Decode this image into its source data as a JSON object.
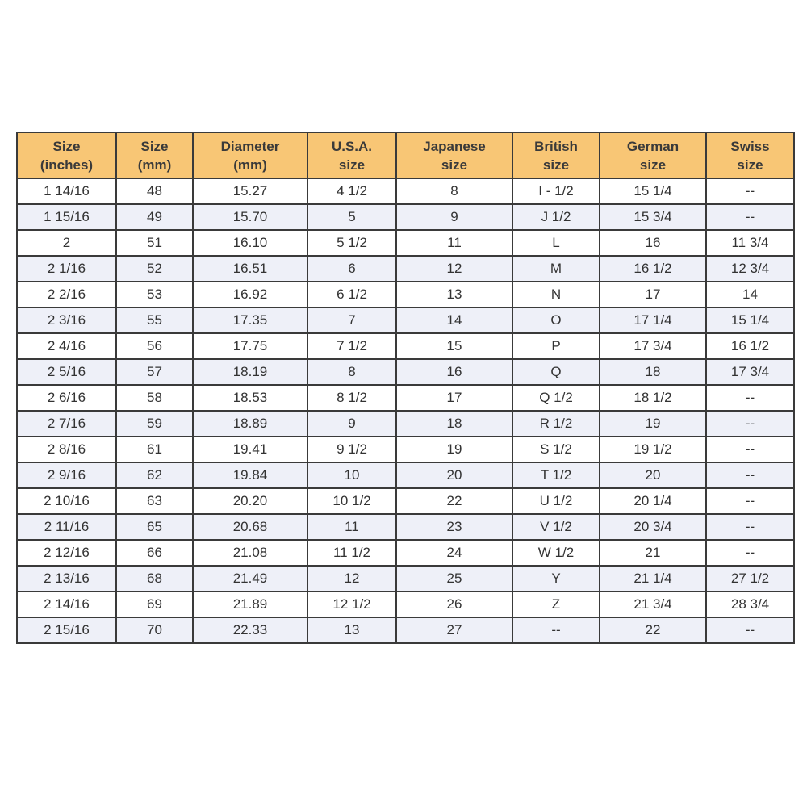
{
  "table": {
    "headers": [
      [
        "Size",
        "(inches)"
      ],
      [
        "Size",
        "(mm)"
      ],
      [
        "Diameter",
        "(mm)"
      ],
      [
        "U.S.A.",
        "size"
      ],
      [
        "Japanese",
        "size"
      ],
      [
        "British",
        "size"
      ],
      [
        "German",
        "size"
      ],
      [
        "Swiss",
        "size"
      ]
    ],
    "rows": [
      [
        "1 14/16",
        "48",
        "15.27",
        "4 1/2",
        "8",
        "I - 1/2",
        "15 1/4",
        "--"
      ],
      [
        "1 15/16",
        "49",
        "15.70",
        "5",
        "9",
        "J 1/2",
        "15 3/4",
        "--"
      ],
      [
        "2",
        "51",
        "16.10",
        "5 1/2",
        "11",
        "L",
        "16",
        "11 3/4"
      ],
      [
        "2 1/16",
        "52",
        "16.51",
        "6",
        "12",
        "M",
        "16 1/2",
        "12 3/4"
      ],
      [
        "2 2/16",
        "53",
        "16.92",
        "6 1/2",
        "13",
        "N",
        "17",
        "14"
      ],
      [
        "2 3/16",
        "55",
        "17.35",
        "7",
        "14",
        "O",
        "17 1/4",
        "15 1/4"
      ],
      [
        "2 4/16",
        "56",
        "17.75",
        "7 1/2",
        "15",
        "P",
        "17 3/4",
        "16 1/2"
      ],
      [
        "2 5/16",
        "57",
        "18.19",
        "8",
        "16",
        "Q",
        "18",
        "17 3/4"
      ],
      [
        "2 6/16",
        "58",
        "18.53",
        "8 1/2",
        "17",
        "Q 1/2",
        "18 1/2",
        "--"
      ],
      [
        "2 7/16",
        "59",
        "18.89",
        "9",
        "18",
        "R 1/2",
        "19",
        "--"
      ],
      [
        "2 8/16",
        "61",
        "19.41",
        "9 1/2",
        "19",
        "S 1/2",
        "19 1/2",
        "--"
      ],
      [
        "2 9/16",
        "62",
        "19.84",
        "10",
        "20",
        "T 1/2",
        "20",
        "--"
      ],
      [
        "2 10/16",
        "63",
        "20.20",
        "10 1/2",
        "22",
        "U 1/2",
        "20 1/4",
        "--"
      ],
      [
        "2 11/16",
        "65",
        "20.68",
        "11",
        "23",
        "V 1/2",
        "20 3/4",
        "--"
      ],
      [
        "2 12/16",
        "66",
        "21.08",
        "11 1/2",
        "24",
        "W 1/2",
        "21",
        "--"
      ],
      [
        "2 13/16",
        "68",
        "21.49",
        "12",
        "25",
        "Y",
        "21 1/4",
        "27 1/2"
      ],
      [
        "2 14/16",
        "69",
        "21.89",
        "12 1/2",
        "26",
        "Z",
        "21 3/4",
        "28 3/4"
      ],
      [
        "2 15/16",
        "70",
        "22.33",
        "13",
        "27",
        "--",
        "22",
        "--"
      ]
    ]
  },
  "colors": {
    "header_bg": "#f8c675",
    "alt_row_bg": "#eef0f8",
    "border": "#3a3a3a"
  }
}
